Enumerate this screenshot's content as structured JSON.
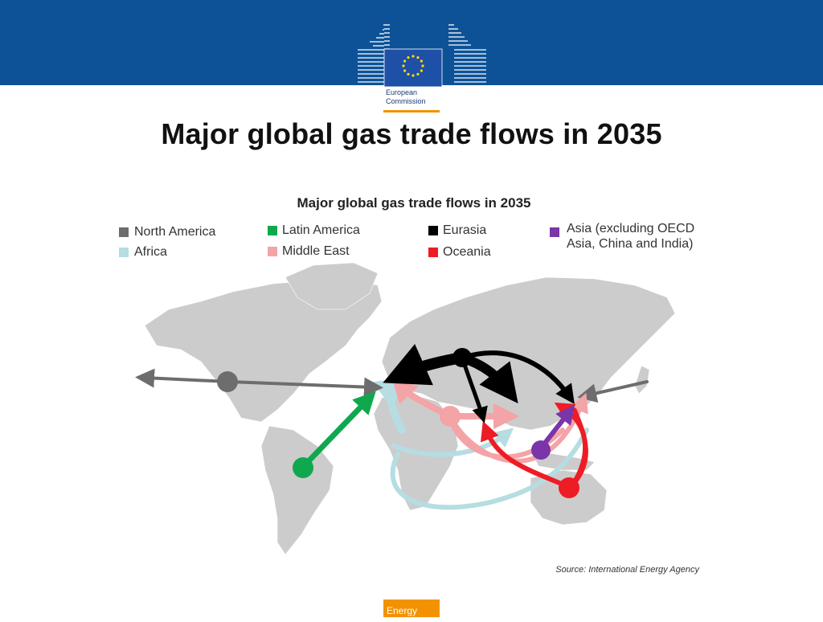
{
  "header": {
    "logo_lines": [
      "European",
      "Commission"
    ],
    "colors": {
      "bar": "#0d5297",
      "accent": "#f39200",
      "stars": "#ffdd00"
    }
  },
  "slide": {
    "title": "Major global gas trade flows in 2035"
  },
  "figure": {
    "title": "Major global gas trade flows in 2035",
    "legend": [
      {
        "label": "North America",
        "color": "#6d6d6d"
      },
      {
        "label": "Latin America",
        "color": "#10a84e"
      },
      {
        "label": "Eurasia",
        "color": "#000000"
      },
      {
        "label": "Asia (excluding  OECD\nAsia, China and India)",
        "color": "#7a35a8"
      },
      {
        "label": "Africa",
        "color": "#b5dde2"
      },
      {
        "label": "Middle East",
        "color": "#f4a3a6"
      },
      {
        "label": "Oceania",
        "color": "#ee1c25"
      }
    ],
    "source": "Source: International Energy Agency"
  },
  "footer": {
    "tag": "Energy"
  }
}
